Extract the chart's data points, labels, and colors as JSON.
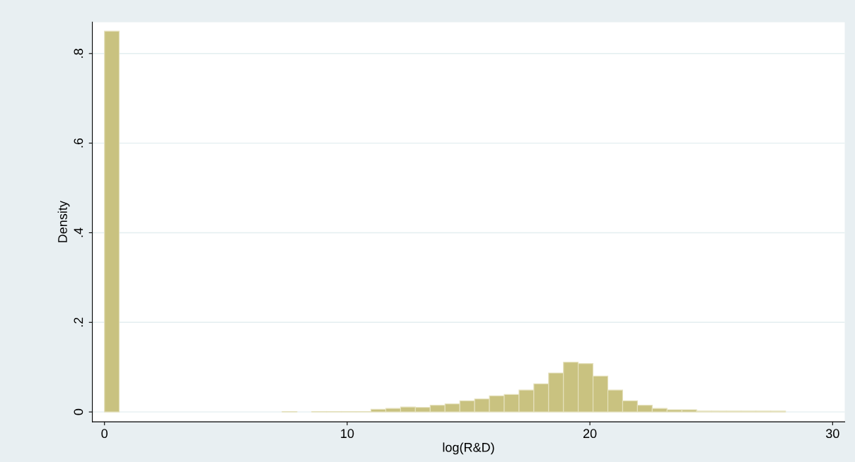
{
  "chart_data": {
    "type": "histogram",
    "xlabel": "log(R&D)",
    "ylabel": "Density",
    "color": "#c9c280",
    "bins": [
      0,
      0.61,
      1.22,
      1.83,
      2.44,
      3.05,
      3.66,
      4.27,
      4.88,
      5.49,
      6.1,
      6.71,
      7.32,
      7.93,
      8.54,
      9.15,
      9.76,
      10.37,
      10.98,
      11.59,
      12.2,
      12.81,
      13.42,
      14.03,
      14.64,
      15.25,
      15.86,
      16.47,
      17.08,
      17.69,
      18.3,
      18.91,
      19.52,
      20.13,
      20.74,
      21.35,
      21.96,
      22.57,
      23.18,
      23.79,
      24.4,
      25.01,
      25.62,
      26.23,
      26.84,
      27.45,
      28.06
    ],
    "values": [
      0.85,
      0,
      0,
      0,
      0,
      0,
      0,
      0,
      0,
      0,
      0,
      0,
      0.001,
      0,
      0.001,
      0.001,
      0.001,
      0.001,
      0.006,
      0.008,
      0.011,
      0.01,
      0.015,
      0.018,
      0.025,
      0.029,
      0.036,
      0.039,
      0.049,
      0.063,
      0.087,
      0.111,
      0.108,
      0.08,
      0.049,
      0.025,
      0.015,
      0.008,
      0.005,
      0.005,
      0.002,
      0.002,
      0.002,
      0.002,
      0.002,
      0.002
    ],
    "xlim": [
      -0.5,
      30.5
    ],
    "xticks": [
      0,
      10,
      20,
      30
    ],
    "ylim": [
      -0.022,
      0.87
    ],
    "yticks": [
      0,
      {
        "value": 0.2,
        "label": ".2"
      },
      {
        "value": 0.4,
        "label": ".4"
      },
      {
        "value": 0.6,
        "label": ".6"
      },
      {
        "value": 0.8,
        "label": ".8"
      }
    ],
    "grid": "y"
  }
}
